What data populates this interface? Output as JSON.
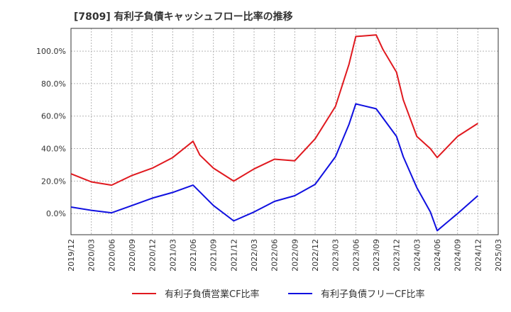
{
  "chart_data": {
    "type": "line",
    "title": "[7809]  有利子負債キャッシュフロー比率の推移",
    "x": [
      "2019/12",
      "2020/03",
      "2020/06",
      "2020/09",
      "2020/12",
      "2021/03",
      "2021/06",
      "2021/09",
      "2021/12",
      "2022/03",
      "2022/06",
      "2022/09",
      "2022/12",
      "2023/03",
      "2023/06",
      "2023/09",
      "2023/12",
      "2024/03",
      "2024/06",
      "2024/09",
      "2024/12",
      "2025/03"
    ],
    "yticks": [
      "0.0%",
      "20.0%",
      "40.0%",
      "60.0%",
      "80.0%",
      "100.0%"
    ],
    "ylim": [
      -13,
      114
    ],
    "grid": true,
    "legend_position": "bottom",
    "series": [
      {
        "name": "有利子負債営業CF比率",
        "color": "#e0191f",
        "points": [
          [
            "2019/12",
            24.5
          ],
          [
            "2020/03",
            19.5
          ],
          [
            "2020/06",
            17.5
          ],
          [
            "2020/09",
            23.5
          ],
          [
            "2020/12",
            28.0
          ],
          [
            "2021/03",
            34.5
          ],
          [
            "2021/06",
            44.5
          ],
          [
            "2021/07",
            36.0
          ],
          [
            "2021/09",
            28.0
          ],
          [
            "2021/12",
            20.0
          ],
          [
            "2022/03",
            27.5
          ],
          [
            "2022/06",
            33.5
          ],
          [
            "2022/09",
            32.5
          ],
          [
            "2022/12",
            46.0
          ],
          [
            "2023/03",
            66.0
          ],
          [
            "2023/05",
            92.0
          ],
          [
            "2023/06",
            109.0
          ],
          [
            "2023/09",
            110.0
          ],
          [
            "2023/10",
            101.0
          ],
          [
            "2023/12",
            87.0
          ],
          [
            "2024/01",
            70.0
          ],
          [
            "2024/03",
            47.5
          ],
          [
            "2024/05",
            40.0
          ],
          [
            "2024/06",
            34.5
          ],
          [
            "2024/09",
            47.5
          ],
          [
            "2024/12",
            55.5
          ]
        ]
      },
      {
        "name": "有利子負債フリーCF比率",
        "color": "#1010e0",
        "points": [
          [
            "2019/12",
            4.0
          ],
          [
            "2020/03",
            2.0
          ],
          [
            "2020/06",
            0.5
          ],
          [
            "2020/09",
            5.0
          ],
          [
            "2020/12",
            9.5
          ],
          [
            "2021/03",
            13.0
          ],
          [
            "2021/06",
            17.5
          ],
          [
            "2021/09",
            5.0
          ],
          [
            "2021/12",
            -4.5
          ],
          [
            "2022/03",
            1.0
          ],
          [
            "2022/06",
            7.5
          ],
          [
            "2022/09",
            11.0
          ],
          [
            "2022/12",
            18.0
          ],
          [
            "2023/03",
            35.0
          ],
          [
            "2023/05",
            55.0
          ],
          [
            "2023/06",
            67.5
          ],
          [
            "2023/09",
            64.5
          ],
          [
            "2023/12",
            47.5
          ],
          [
            "2024/01",
            35.0
          ],
          [
            "2024/03",
            16.0
          ],
          [
            "2024/05",
            1.0
          ],
          [
            "2024/06",
            -10.5
          ],
          [
            "2024/09",
            0.0
          ],
          [
            "2024/12",
            11.0
          ]
        ]
      }
    ]
  }
}
